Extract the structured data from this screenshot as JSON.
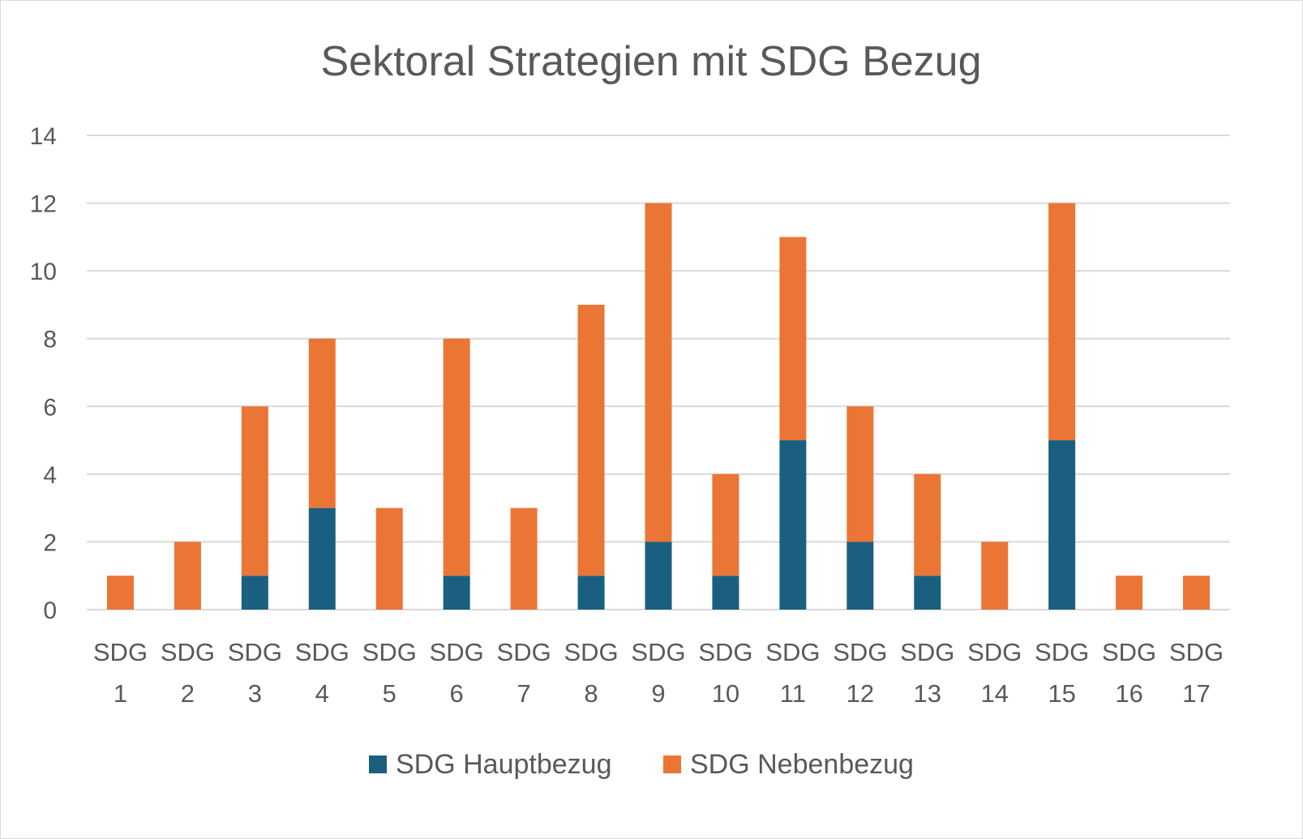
{
  "chart_data": {
    "type": "bar",
    "stacked": true,
    "title": "Sektoral Strategien mit SDG Bezug",
    "categories": [
      [
        "SDG",
        "1"
      ],
      [
        "SDG",
        "2"
      ],
      [
        "SDG",
        "3"
      ],
      [
        "SDG",
        "4"
      ],
      [
        "SDG",
        "5"
      ],
      [
        "SDG",
        "6"
      ],
      [
        "SDG",
        "7"
      ],
      [
        "SDG",
        "8"
      ],
      [
        "SDG",
        "9"
      ],
      [
        "SDG",
        "10"
      ],
      [
        "SDG",
        "11"
      ],
      [
        "SDG",
        "12"
      ],
      [
        "SDG",
        "13"
      ],
      [
        "SDG",
        "14"
      ],
      [
        "SDG",
        "15"
      ],
      [
        "SDG",
        "16"
      ],
      [
        "SDG",
        "17"
      ]
    ],
    "series": [
      {
        "name": "SDG Hauptbezug",
        "color": "#1a5f80",
        "values": [
          0,
          0,
          1,
          3,
          0,
          1,
          0,
          1,
          2,
          1,
          5,
          2,
          1,
          0,
          5,
          0,
          0
        ]
      },
      {
        "name": "SDG Nebenbezug",
        "color": "#eb7535",
        "values": [
          1,
          2,
          5,
          5,
          3,
          7,
          3,
          8,
          10,
          3,
          6,
          4,
          3,
          2,
          7,
          1,
          1
        ]
      }
    ],
    "yticks": [
      "0",
      "2",
      "4",
      "6",
      "8",
      "10",
      "12",
      "14"
    ],
    "ylim": [
      0,
      14
    ],
    "grid": true,
    "legend_position": "bottom"
  }
}
